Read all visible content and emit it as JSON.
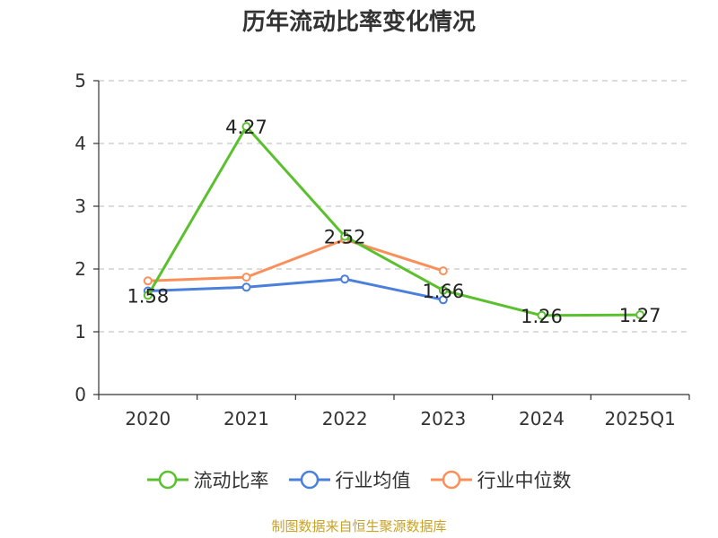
{
  "title": "历年流动比率变化情况",
  "source_note": "制图数据来自恒生聚源数据库",
  "chart_data": {
    "type": "line",
    "title": "历年流动比率变化情况",
    "xlabel": "",
    "ylabel": "",
    "categories": [
      "2020",
      "2021",
      "2022",
      "2023",
      "2024",
      "2025Q1"
    ],
    "ylim": [
      0,
      5
    ],
    "yticks": [
      0,
      1,
      2,
      3,
      4,
      5
    ],
    "grid": "horizontal-dashed",
    "legend_position": "bottom",
    "series": [
      {
        "name": "流动比率",
        "color": "#5ac02e",
        "values": [
          1.58,
          4.27,
          2.52,
          1.66,
          1.26,
          1.27
        ],
        "labeled": true
      },
      {
        "name": "行业均值",
        "color": "#4a7fdc",
        "values": [
          1.65,
          1.71,
          1.84,
          1.51,
          null,
          null
        ],
        "labeled": false
      },
      {
        "name": "行业中位数",
        "color": "#fb8f5a",
        "values": [
          1.81,
          1.87,
          2.47,
          1.97,
          null,
          null
        ],
        "labeled": false
      }
    ],
    "data_labels": [
      "1.58",
      "4.27",
      "2.52",
      "1.66",
      "1.26",
      "1.27"
    ]
  }
}
